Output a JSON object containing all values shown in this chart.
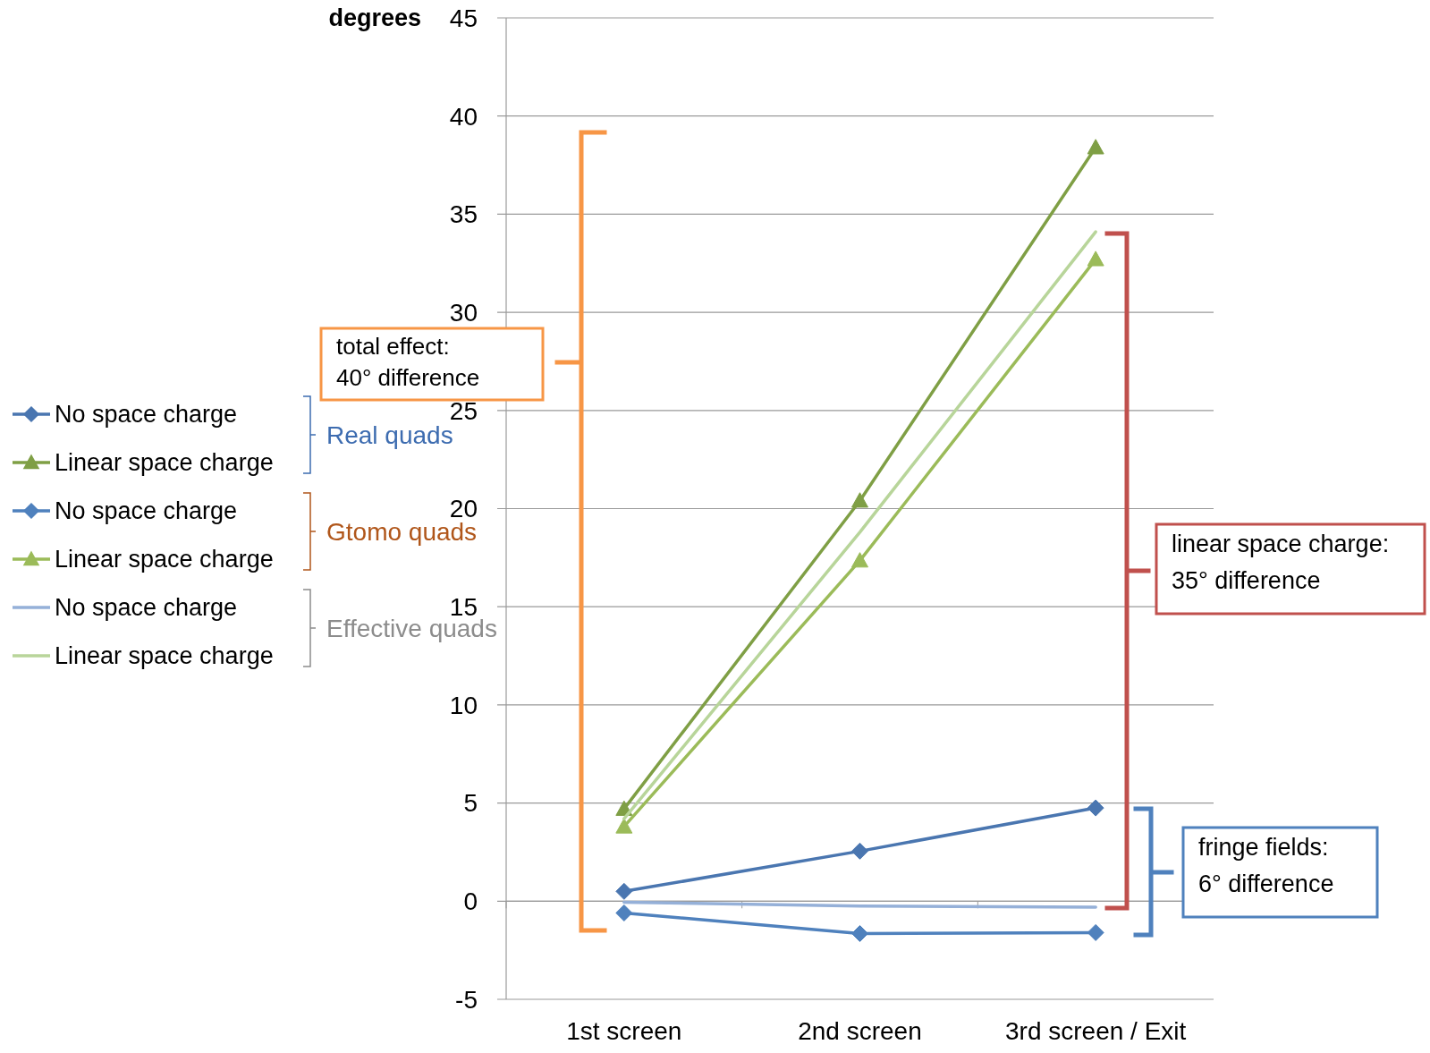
{
  "chart_data": {
    "type": "line",
    "ylabel": "degrees",
    "categories": [
      "1st screen",
      "2nd screen",
      "3rd screen / Exit"
    ],
    "ylim": [
      -5,
      45
    ],
    "yticks": [
      -5,
      0,
      5,
      10,
      15,
      20,
      25,
      30,
      35,
      40,
      45
    ],
    "grid": "y",
    "legend": "left",
    "line_style": "solid",
    "series": [
      {
        "name": "No space charge",
        "color": "#4a76b0",
        "marker": "diamond",
        "values": [
          0.5,
          2.55,
          4.75
        ]
      },
      {
        "name": "Linear space charge",
        "color": "#7f9f45",
        "marker": "triangle",
        "values": [
          4.7,
          20.4,
          38.4
        ]
      },
      {
        "name": "No space charge",
        "color": "#4f81bd",
        "marker": "diamond",
        "values": [
          -0.6,
          -1.65,
          -1.6
        ]
      },
      {
        "name": "Linear space charge",
        "color": "#9bbb59",
        "marker": "triangle",
        "values": [
          3.8,
          17.35,
          32.7
        ]
      },
      {
        "name": "No space charge",
        "color": "#95b0d8",
        "marker": "none",
        "values": [
          -0.05,
          -0.25,
          -0.3
        ]
      },
      {
        "name": "Linear space charge",
        "color": "#b8d59a",
        "marker": "none",
        "values": [
          4.2,
          18.8,
          34.1
        ]
      }
    ],
    "annotations": [
      "Real quads",
      "Gtomo quads",
      "Effective quads",
      "total effect:\n40° difference",
      "linear space charge:\n35° difference",
      "fringe fields:\n6° difference"
    ]
  }
}
